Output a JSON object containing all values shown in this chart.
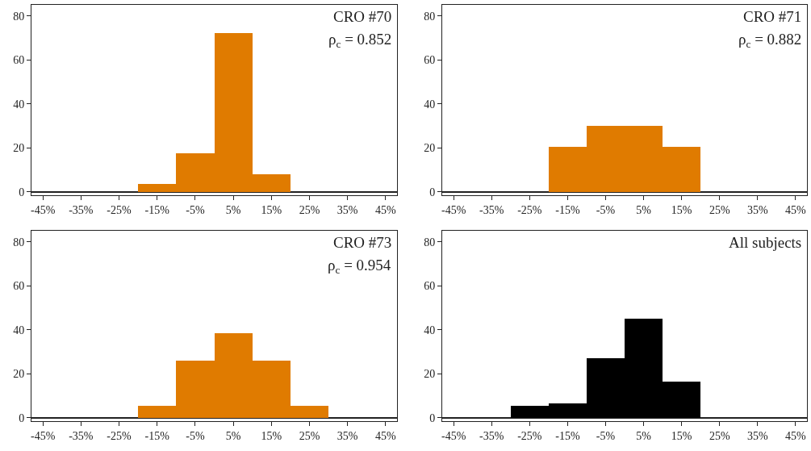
{
  "chart_data": [
    {
      "type": "histogram",
      "bins": [
        -20,
        -10,
        0,
        10,
        20
      ],
      "values": [
        3.5,
        17.5,
        72,
        8
      ],
      "color": "#e07b00",
      "xlim": [
        -48,
        48
      ],
      "ylim": [
        -1.5,
        85
      ],
      "xticks": [
        {
          "value": -45,
          "label": "-45%"
        },
        {
          "value": -35,
          "label": "-35%"
        },
        {
          "value": -25,
          "label": "-25%"
        },
        {
          "value": -15,
          "label": "-15%"
        },
        {
          "value": -5,
          "label": "-5%"
        },
        {
          "value": 5,
          "label": "5%"
        },
        {
          "value": 15,
          "label": "15%"
        },
        {
          "value": 25,
          "label": "25%"
        },
        {
          "value": 35,
          "label": "35%"
        },
        {
          "value": 45,
          "label": "45%"
        }
      ],
      "yticks": [
        0,
        20,
        40,
        60,
        80
      ],
      "annotations": [
        "CRO #70",
        "ρ$_{c}$ = 0.852"
      ]
    },
    {
      "type": "histogram",
      "bins": [
        -20,
        -10,
        0,
        10,
        20
      ],
      "values": [
        20.5,
        30,
        30,
        20.5
      ],
      "color": "#e07b00",
      "xlim": [
        -48,
        48
      ],
      "ylim": [
        -1.5,
        85
      ],
      "xticks": [
        {
          "value": -45,
          "label": "-45%"
        },
        {
          "value": -35,
          "label": "-35%"
        },
        {
          "value": -25,
          "label": "-25%"
        },
        {
          "value": -15,
          "label": "-15%"
        },
        {
          "value": -5,
          "label": "-5%"
        },
        {
          "value": 5,
          "label": "5%"
        },
        {
          "value": 15,
          "label": "15%"
        },
        {
          "value": 25,
          "label": "25%"
        },
        {
          "value": 35,
          "label": "35%"
        },
        {
          "value": 45,
          "label": "45%"
        }
      ],
      "yticks": [
        0,
        20,
        40,
        60,
        80
      ],
      "annotations": [
        "CRO #71",
        "ρ$_{c}$ = 0.882"
      ]
    },
    {
      "type": "histogram",
      "bins": [
        -20,
        -10,
        0,
        10,
        20,
        30
      ],
      "values": [
        5.5,
        26,
        38.5,
        26,
        5.5
      ],
      "color": "#e07b00",
      "xlim": [
        -48,
        48
      ],
      "ylim": [
        -1.5,
        85
      ],
      "xticks": [
        {
          "value": -45,
          "label": "-45%"
        },
        {
          "value": -35,
          "label": "-35%"
        },
        {
          "value": -25,
          "label": "-25%"
        },
        {
          "value": -15,
          "label": "-15%"
        },
        {
          "value": -5,
          "label": "-5%"
        },
        {
          "value": 5,
          "label": "5%"
        },
        {
          "value": 15,
          "label": "15%"
        },
        {
          "value": 25,
          "label": "25%"
        },
        {
          "value": 35,
          "label": "35%"
        },
        {
          "value": 45,
          "label": "45%"
        }
      ],
      "yticks": [
        0,
        20,
        40,
        60,
        80
      ],
      "annotations": [
        "CRO #73",
        "ρ$_{c}$ = 0.954"
      ]
    },
    {
      "type": "histogram",
      "bins": [
        -30,
        -20,
        -10,
        0,
        10,
        20
      ],
      "values": [
        5.5,
        6.5,
        27,
        45,
        16.5
      ],
      "color": "#000000",
      "xlim": [
        -48,
        48
      ],
      "ylim": [
        -1.5,
        85
      ],
      "xticks": [
        {
          "value": -45,
          "label": "-45%"
        },
        {
          "value": -35,
          "label": "-35%"
        },
        {
          "value": -25,
          "label": "-25%"
        },
        {
          "value": -15,
          "label": "-15%"
        },
        {
          "value": -5,
          "label": "-5%"
        },
        {
          "value": 5,
          "label": "5%"
        },
        {
          "value": 15,
          "label": "15%"
        },
        {
          "value": 25,
          "label": "25%"
        },
        {
          "value": 35,
          "label": "35%"
        },
        {
          "value": 45,
          "label": "45%"
        }
      ],
      "yticks": [
        0,
        20,
        40,
        60,
        80
      ],
      "annotations": [
        "All subjects"
      ]
    }
  ]
}
